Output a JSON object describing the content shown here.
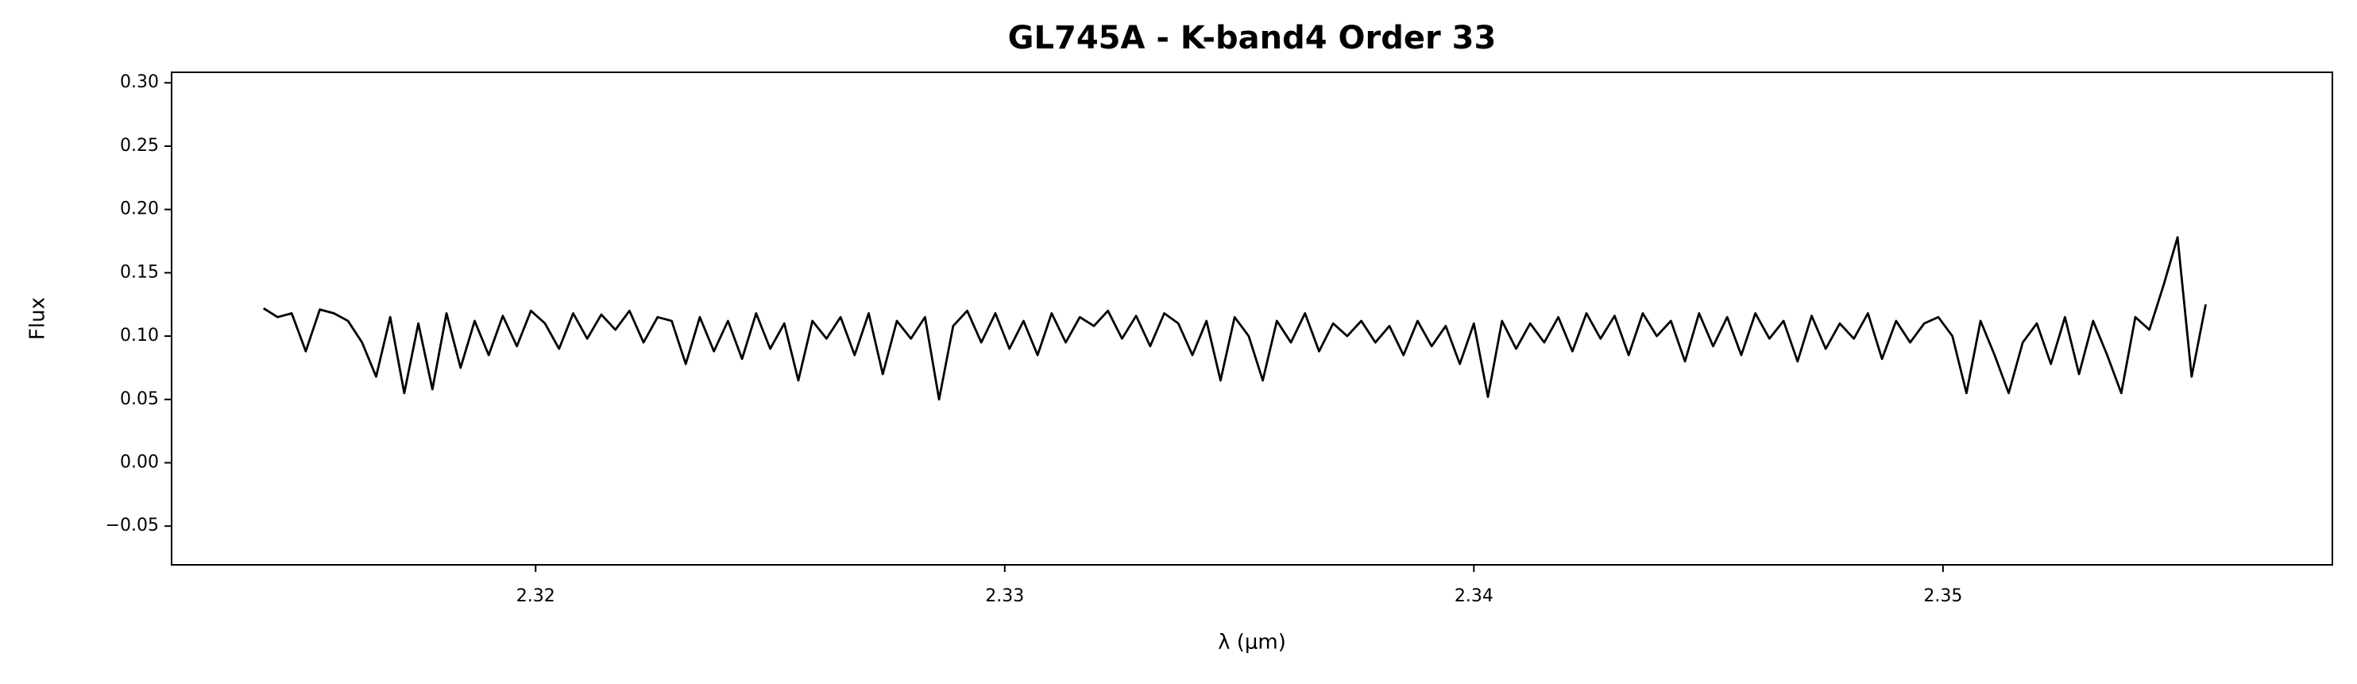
{
  "chart_data": {
    "type": "line",
    "title": "GL745A - K-band4 Order 33",
    "x_label": "λ (μm)",
    "y_label": "Flux",
    "color": "#000000",
    "x": [
      2.3142,
      2.3145,
      2.3148,
      2.3151,
      2.3154,
      2.3157,
      2.316,
      2.3163,
      2.3166,
      2.3169,
      2.3172,
      2.3175,
      2.3178,
      2.3181,
      2.3184,
      2.3187,
      2.319,
      2.3193,
      2.3196,
      2.3199,
      2.3202,
      2.3205,
      2.3208,
      2.3211,
      2.3214,
      2.3217,
      2.322,
      2.3223,
      2.3226,
      2.3229,
      2.3232,
      2.3235,
      2.3238,
      2.3241,
      2.3244,
      2.3247,
      2.325,
      2.3253,
      2.3256,
      2.3259,
      2.3262,
      2.3265,
      2.3268,
      2.3271,
      2.3274,
      2.3277,
      2.328,
      2.3283,
      2.3286,
      2.3289,
      2.3292,
      2.3295,
      2.3298,
      2.3301,
      2.3304,
      2.3307,
      2.331,
      2.3313,
      2.3316,
      2.3319,
      2.3322,
      2.3325,
      2.3328,
      2.3331,
      2.3334,
      2.3337,
      2.334,
      2.3343,
      2.3346,
      2.3349,
      2.3352,
      2.3355,
      2.3358,
      2.3361,
      2.3364,
      2.3367,
      2.337,
      2.3373,
      2.3376,
      2.3379,
      2.3382,
      2.3385,
      2.3388,
      2.3391,
      2.3394,
      2.3397,
      2.34,
      2.3403,
      2.3406,
      2.3409,
      2.3412,
      2.3415,
      2.3418,
      2.3421,
      2.3424,
      2.3427,
      2.343,
      2.3433,
      2.3436,
      2.3439,
      2.3442,
      2.3445,
      2.3448,
      2.3451,
      2.3454,
      2.3457,
      2.346,
      2.3463,
      2.3466,
      2.3469,
      2.3472,
      2.3475,
      2.3478,
      2.3481,
      2.3484,
      2.3487,
      2.349,
      2.3493,
      2.3496,
      2.3499,
      2.3502,
      2.3505,
      2.3508,
      2.3511,
      2.3514,
      2.3517,
      2.352,
      2.3523,
      2.3526,
      2.3529,
      2.3532,
      2.3535,
      2.3538,
      2.3541,
      2.3544,
      2.3547,
      2.355,
      2.3553,
      2.3556
    ],
    "values": [
      0.122,
      0.115,
      0.118,
      0.088,
      0.121,
      0.118,
      0.112,
      0.095,
      0.068,
      0.115,
      0.055,
      0.11,
      0.058,
      0.118,
      0.075,
      0.112,
      0.085,
      0.116,
      0.092,
      0.12,
      0.11,
      0.09,
      0.118,
      0.098,
      0.117,
      0.105,
      0.12,
      0.095,
      0.115,
      0.112,
      0.078,
      0.115,
      0.088,
      0.112,
      0.082,
      0.118,
      0.09,
      0.11,
      0.065,
      0.112,
      0.098,
      0.115,
      0.085,
      0.118,
      0.07,
      0.112,
      0.098,
      0.115,
      0.05,
      0.108,
      0.12,
      0.095,
      0.118,
      0.09,
      0.112,
      0.085,
      0.118,
      0.095,
      0.115,
      0.108,
      0.12,
      0.098,
      0.116,
      0.092,
      0.118,
      0.11,
      0.085,
      0.112,
      0.065,
      0.115,
      0.1,
      0.065,
      0.112,
      0.095,
      0.118,
      0.088,
      0.11,
      0.1,
      0.112,
      0.095,
      0.108,
      0.085,
      0.112,
      0.092,
      0.108,
      0.078,
      0.11,
      0.052,
      0.112,
      0.09,
      0.11,
      0.095,
      0.115,
      0.088,
      0.118,
      0.098,
      0.116,
      0.085,
      0.118,
      0.1,
      0.112,
      0.08,
      0.118,
      0.092,
      0.115,
      0.085,
      0.118,
      0.098,
      0.112,
      0.08,
      0.116,
      0.09,
      0.11,
      0.098,
      0.118,
      0.082,
      0.112,
      0.095,
      0.11,
      0.115,
      0.1,
      0.055,
      0.112,
      0.085,
      0.055,
      0.095,
      0.11,
      0.078,
      0.115,
      0.07,
      0.112,
      0.085,
      0.055,
      0.115,
      0.105,
      0.14,
      0.178,
      0.068,
      0.125
    ],
    "xlim": [
      2.31224,
      2.3583
    ],
    "ylim": [
      -0.0806,
      0.3083
    ],
    "xticks": [
      2.32,
      2.33,
      2.34,
      2.35
    ],
    "yticks": [
      {
        "value": -0.05,
        "label": "−0.05"
      },
      {
        "value": 0,
        "label": "0.00"
      },
      {
        "value": 0.05,
        "label": "0.05"
      },
      {
        "value": 0.1,
        "label": "0.10"
      },
      {
        "value": 0.15,
        "label": "0.15"
      },
      {
        "value": 0.2,
        "label": "0.20"
      },
      {
        "value": 0.25,
        "label": "0.25"
      },
      {
        "value": 0.3,
        "label": "0.30"
      }
    ],
    "grid": false
  }
}
